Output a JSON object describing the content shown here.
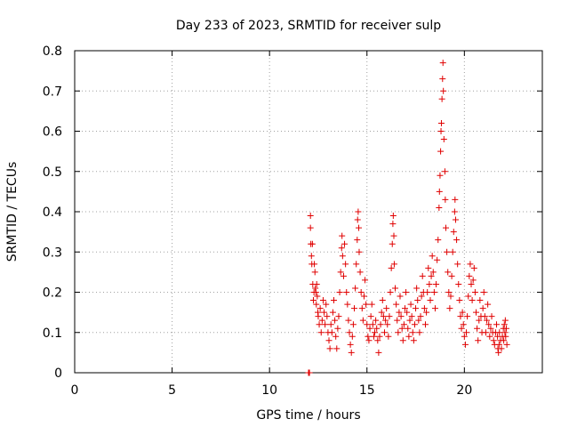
{
  "chart_data": {
    "type": "scatter",
    "title": "Day 233 of 2023, SRMTID for receiver sulp",
    "xlabel": "GPS time / hours",
    "ylabel": "SRMTID / TECUs",
    "xlim": [
      0,
      24
    ],
    "ylim": [
      0,
      0.8
    ],
    "xticks": [
      0,
      5,
      10,
      15,
      20
    ],
    "xtick_labels": [
      "0",
      "5",
      "10",
      "15",
      "20"
    ],
    "yticks": [
      0,
      0.1,
      0.2,
      0.3,
      0.4,
      0.5,
      0.6,
      0.7,
      0.8
    ],
    "ytick_labels": [
      "0",
      "0.1",
      "0.2",
      "0.3",
      "0.4",
      "0.5",
      "0.6",
      "0.7",
      "0.8"
    ],
    "grid": true,
    "marker": "+",
    "series_color": "#e00000",
    "series": [
      {
        "name": "SRMTID",
        "points": [
          [
            12.0,
            0.0
          ],
          [
            12.02,
            0.0
          ],
          [
            12.05,
            0.0
          ],
          [
            12.1,
            0.39
          ],
          [
            12.1,
            0.36
          ],
          [
            12.12,
            0.32
          ],
          [
            12.15,
            0.29
          ],
          [
            12.17,
            0.27
          ],
          [
            12.2,
            0.32
          ],
          [
            12.22,
            0.22
          ],
          [
            12.25,
            0.18
          ],
          [
            12.28,
            0.2
          ],
          [
            12.3,
            0.27
          ],
          [
            12.33,
            0.25
          ],
          [
            12.35,
            0.21
          ],
          [
            12.38,
            0.2
          ],
          [
            12.4,
            0.17
          ],
          [
            12.42,
            0.22
          ],
          [
            12.45,
            0.19
          ],
          [
            12.48,
            0.15
          ],
          [
            12.5,
            0.14
          ],
          [
            12.55,
            0.12
          ],
          [
            12.6,
            0.16
          ],
          [
            12.65,
            0.1
          ],
          [
            12.7,
            0.13
          ],
          [
            12.75,
            0.18
          ],
          [
            12.8,
            0.15
          ],
          [
            12.85,
            0.12
          ],
          [
            12.9,
            0.17
          ],
          [
            12.95,
            0.14
          ],
          [
            13.0,
            0.1
          ],
          [
            13.05,
            0.08
          ],
          [
            13.1,
            0.06
          ],
          [
            13.15,
            0.12
          ],
          [
            13.2,
            0.1
          ],
          [
            13.25,
            0.15
          ],
          [
            13.3,
            0.18
          ],
          [
            13.35,
            0.13
          ],
          [
            13.4,
            0.09
          ],
          [
            13.45,
            0.06
          ],
          [
            13.5,
            0.11
          ],
          [
            13.55,
            0.14
          ],
          [
            13.6,
            0.2
          ],
          [
            13.65,
            0.25
          ],
          [
            13.7,
            0.31
          ],
          [
            13.72,
            0.34
          ],
          [
            13.75,
            0.29
          ],
          [
            13.8,
            0.24
          ],
          [
            13.85,
            0.32
          ],
          [
            13.9,
            0.27
          ],
          [
            13.95,
            0.2
          ],
          [
            14.0,
            0.17
          ],
          [
            14.05,
            0.13
          ],
          [
            14.1,
            0.1
          ],
          [
            14.15,
            0.07
          ],
          [
            14.2,
            0.05
          ],
          [
            14.25,
            0.09
          ],
          [
            14.3,
            0.12
          ],
          [
            14.35,
            0.16
          ],
          [
            14.4,
            0.21
          ],
          [
            14.45,
            0.27
          ],
          [
            14.5,
            0.33
          ],
          [
            14.52,
            0.38
          ],
          [
            14.55,
            0.4
          ],
          [
            14.58,
            0.36
          ],
          [
            14.6,
            0.3
          ],
          [
            14.65,
            0.25
          ],
          [
            14.7,
            0.2
          ],
          [
            14.75,
            0.16
          ],
          [
            14.8,
            0.13
          ],
          [
            14.85,
            0.19
          ],
          [
            14.9,
            0.23
          ],
          [
            14.95,
            0.17
          ],
          [
            15.0,
            0.12
          ],
          [
            15.05,
            0.09
          ],
          [
            15.1,
            0.08
          ],
          [
            15.15,
            0.11
          ],
          [
            15.2,
            0.14
          ],
          [
            15.25,
            0.17
          ],
          [
            15.3,
            0.12
          ],
          [
            15.35,
            0.09
          ],
          [
            15.4,
            0.1
          ],
          [
            15.45,
            0.13
          ],
          [
            15.5,
            0.11
          ],
          [
            15.55,
            0.08
          ],
          [
            15.6,
            0.05
          ],
          [
            15.65,
            0.09
          ],
          [
            15.7,
            0.12
          ],
          [
            15.75,
            0.15
          ],
          [
            15.8,
            0.18
          ],
          [
            15.85,
            0.14
          ],
          [
            15.9,
            0.1
          ],
          [
            15.95,
            0.13
          ],
          [
            16.0,
            0.16
          ],
          [
            16.05,
            0.12
          ],
          [
            16.1,
            0.09
          ],
          [
            16.15,
            0.14
          ],
          [
            16.2,
            0.2
          ],
          [
            16.25,
            0.26
          ],
          [
            16.3,
            0.32
          ],
          [
            16.33,
            0.37
          ],
          [
            16.35,
            0.39
          ],
          [
            16.38,
            0.34
          ],
          [
            16.4,
            0.27
          ],
          [
            16.45,
            0.21
          ],
          [
            16.5,
            0.17
          ],
          [
            16.55,
            0.13
          ],
          [
            16.6,
            0.1
          ],
          [
            16.65,
            0.15
          ],
          [
            16.7,
            0.19
          ],
          [
            16.75,
            0.14
          ],
          [
            16.8,
            0.11
          ],
          [
            16.85,
            0.08
          ],
          [
            16.9,
            0.12
          ],
          [
            16.95,
            0.16
          ],
          [
            17.0,
            0.2
          ],
          [
            17.05,
            0.15
          ],
          [
            17.1,
            0.11
          ],
          [
            17.15,
            0.09
          ],
          [
            17.2,
            0.13
          ],
          [
            17.25,
            0.17
          ],
          [
            17.3,
            0.14
          ],
          [
            17.35,
            0.1
          ],
          [
            17.4,
            0.08
          ],
          [
            17.45,
            0.12
          ],
          [
            17.5,
            0.16
          ],
          [
            17.55,
            0.21
          ],
          [
            17.6,
            0.18
          ],
          [
            17.65,
            0.13
          ],
          [
            17.7,
            0.1
          ],
          [
            17.75,
            0.14
          ],
          [
            17.8,
            0.19
          ],
          [
            17.85,
            0.24
          ],
          [
            17.9,
            0.2
          ],
          [
            17.95,
            0.16
          ],
          [
            18.0,
            0.12
          ],
          [
            18.05,
            0.15
          ],
          [
            18.1,
            0.2
          ],
          [
            18.15,
            0.26
          ],
          [
            18.2,
            0.22
          ],
          [
            18.25,
            0.18
          ],
          [
            18.3,
            0.24
          ],
          [
            18.35,
            0.29
          ],
          [
            18.4,
            0.25
          ],
          [
            18.45,
            0.2
          ],
          [
            18.5,
            0.16
          ],
          [
            18.55,
            0.22
          ],
          [
            18.6,
            0.28
          ],
          [
            18.65,
            0.33
          ],
          [
            18.7,
            0.41
          ],
          [
            18.72,
            0.45
          ],
          [
            18.75,
            0.49
          ],
          [
            18.78,
            0.55
          ],
          [
            18.8,
            0.6
          ],
          [
            18.82,
            0.62
          ],
          [
            18.85,
            0.68
          ],
          [
            18.88,
            0.73
          ],
          [
            18.9,
            0.77
          ],
          [
            18.92,
            0.7
          ],
          [
            18.95,
            0.58
          ],
          [
            19.0,
            0.5
          ],
          [
            19.02,
            0.43
          ],
          [
            19.05,
            0.36
          ],
          [
            19.1,
            0.3
          ],
          [
            19.15,
            0.25
          ],
          [
            19.2,
            0.2
          ],
          [
            19.25,
            0.16
          ],
          [
            19.3,
            0.19
          ],
          [
            19.35,
            0.24
          ],
          [
            19.4,
            0.3
          ],
          [
            19.45,
            0.35
          ],
          [
            19.5,
            0.4
          ],
          [
            19.52,
            0.43
          ],
          [
            19.55,
            0.38
          ],
          [
            19.6,
            0.33
          ],
          [
            19.65,
            0.27
          ],
          [
            19.7,
            0.22
          ],
          [
            19.75,
            0.18
          ],
          [
            19.8,
            0.14
          ],
          [
            19.85,
            0.11
          ],
          [
            19.9,
            0.15
          ],
          [
            19.95,
            0.12
          ],
          [
            20.0,
            0.09
          ],
          [
            20.05,
            0.07
          ],
          [
            20.1,
            0.1
          ],
          [
            20.15,
            0.14
          ],
          [
            20.2,
            0.19
          ],
          [
            20.25,
            0.24
          ],
          [
            20.3,
            0.27
          ],
          [
            20.35,
            0.22
          ],
          [
            20.4,
            0.18
          ],
          [
            20.45,
            0.23
          ],
          [
            20.5,
            0.26
          ],
          [
            20.55,
            0.2
          ],
          [
            20.6,
            0.15
          ],
          [
            20.65,
            0.11
          ],
          [
            20.7,
            0.08
          ],
          [
            20.75,
            0.13
          ],
          [
            20.8,
            0.18
          ],
          [
            20.85,
            0.14
          ],
          [
            20.9,
            0.1
          ],
          [
            20.95,
            0.16
          ],
          [
            21.0,
            0.2
          ],
          [
            21.05,
            0.14
          ],
          [
            21.1,
            0.1
          ],
          [
            21.15,
            0.13
          ],
          [
            21.2,
            0.17
          ],
          [
            21.25,
            0.12
          ],
          [
            21.3,
            0.09
          ],
          [
            21.35,
            0.11
          ],
          [
            21.4,
            0.14
          ],
          [
            21.45,
            0.1
          ],
          [
            21.5,
            0.08
          ],
          [
            21.55,
            0.07
          ],
          [
            21.6,
            0.1
          ],
          [
            21.65,
            0.12
          ],
          [
            21.7,
            0.09
          ],
          [
            21.72,
            0.06
          ],
          [
            21.75,
            0.05
          ],
          [
            21.78,
            0.07
          ],
          [
            21.8,
            0.1
          ],
          [
            21.85,
            0.08
          ],
          [
            21.9,
            0.06
          ],
          [
            21.95,
            0.09
          ],
          [
            22.0,
            0.11
          ],
          [
            22.02,
            0.08
          ],
          [
            22.05,
            0.12
          ],
          [
            22.08,
            0.1
          ],
          [
            22.1,
            0.13
          ],
          [
            22.12,
            0.09
          ],
          [
            22.15,
            0.11
          ],
          [
            22.18,
            0.07
          ]
        ]
      }
    ]
  }
}
